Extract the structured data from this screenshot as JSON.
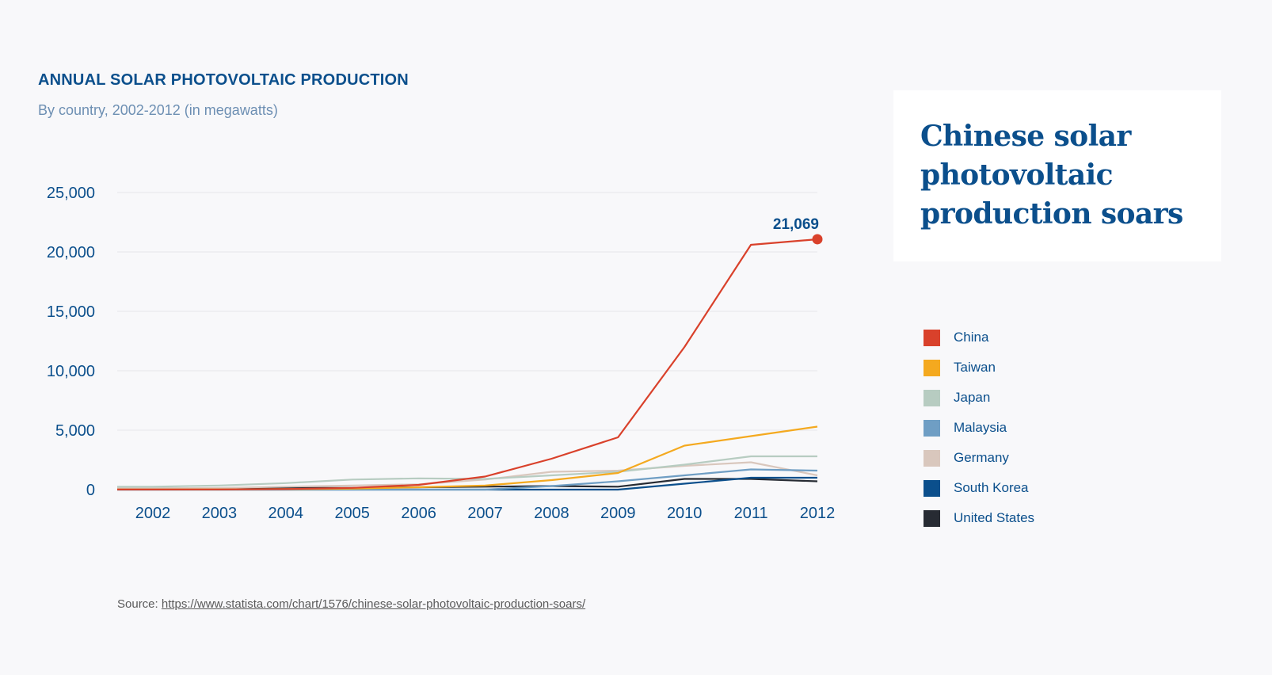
{
  "chart_data": {
    "type": "line",
    "title": "ANNUAL SOLAR PHOTOVOLTAIC PRODUCTION",
    "subtitle": "By country, 2002-2012 (in megawatts)",
    "x": [
      2002,
      2003,
      2004,
      2005,
      2006,
      2007,
      2008,
      2009,
      2010,
      2011,
      2012
    ],
    "ylim": [
      0,
      25000
    ],
    "yticks": [
      0,
      5000,
      10000,
      15000,
      20000,
      25000
    ],
    "ytick_labels": [
      "0",
      "5,000",
      "10,000",
      "15,000",
      "20,000",
      "25,000"
    ],
    "grid": true,
    "legend_position": "right",
    "annotation": {
      "series": "China",
      "x": 2012,
      "y": 21069,
      "label": "21,069"
    },
    "series": [
      {
        "name": "China",
        "color": "#d9412b",
        "values": [
          10,
          15,
          50,
          150,
          400,
          1100,
          2600,
          4400,
          12000,
          20600,
          21069
        ]
      },
      {
        "name": "Taiwan",
        "color": "#f4a91f",
        "values": [
          10,
          20,
          40,
          80,
          200,
          350,
          800,
          1400,
          3700,
          4500,
          5300
        ]
      },
      {
        "name": "Japan",
        "color": "#b7ccc1",
        "values": [
          250,
          350,
          550,
          850,
          950,
          900,
          1200,
          1500,
          2100,
          2800,
          2800
        ]
      },
      {
        "name": "Malaysia",
        "color": "#6f9ec4",
        "values": [
          0,
          0,
          0,
          0,
          0,
          0,
          300,
          700,
          1200,
          1700,
          1600
        ]
      },
      {
        "name": "Germany",
        "color": "#d9c7bd",
        "values": [
          100,
          150,
          250,
          350,
          450,
          850,
          1500,
          1600,
          2000,
          2300,
          1200
        ]
      },
      {
        "name": "South Korea",
        "color": "#0b4f8c",
        "values": [
          0,
          0,
          0,
          0,
          0,
          0,
          0,
          0,
          500,
          1000,
          1000
        ]
      },
      {
        "name": "United States",
        "color": "#272b33",
        "values": [
          100,
          110,
          140,
          150,
          200,
          250,
          300,
          250,
          900,
          900,
          700
        ]
      }
    ]
  },
  "headline": "Chinese solar photovoltaic production soars",
  "source": {
    "label": "Source:",
    "url": "https://www.statista.com/chart/1576/chinese-solar-photovoltaic-production-soars/"
  }
}
